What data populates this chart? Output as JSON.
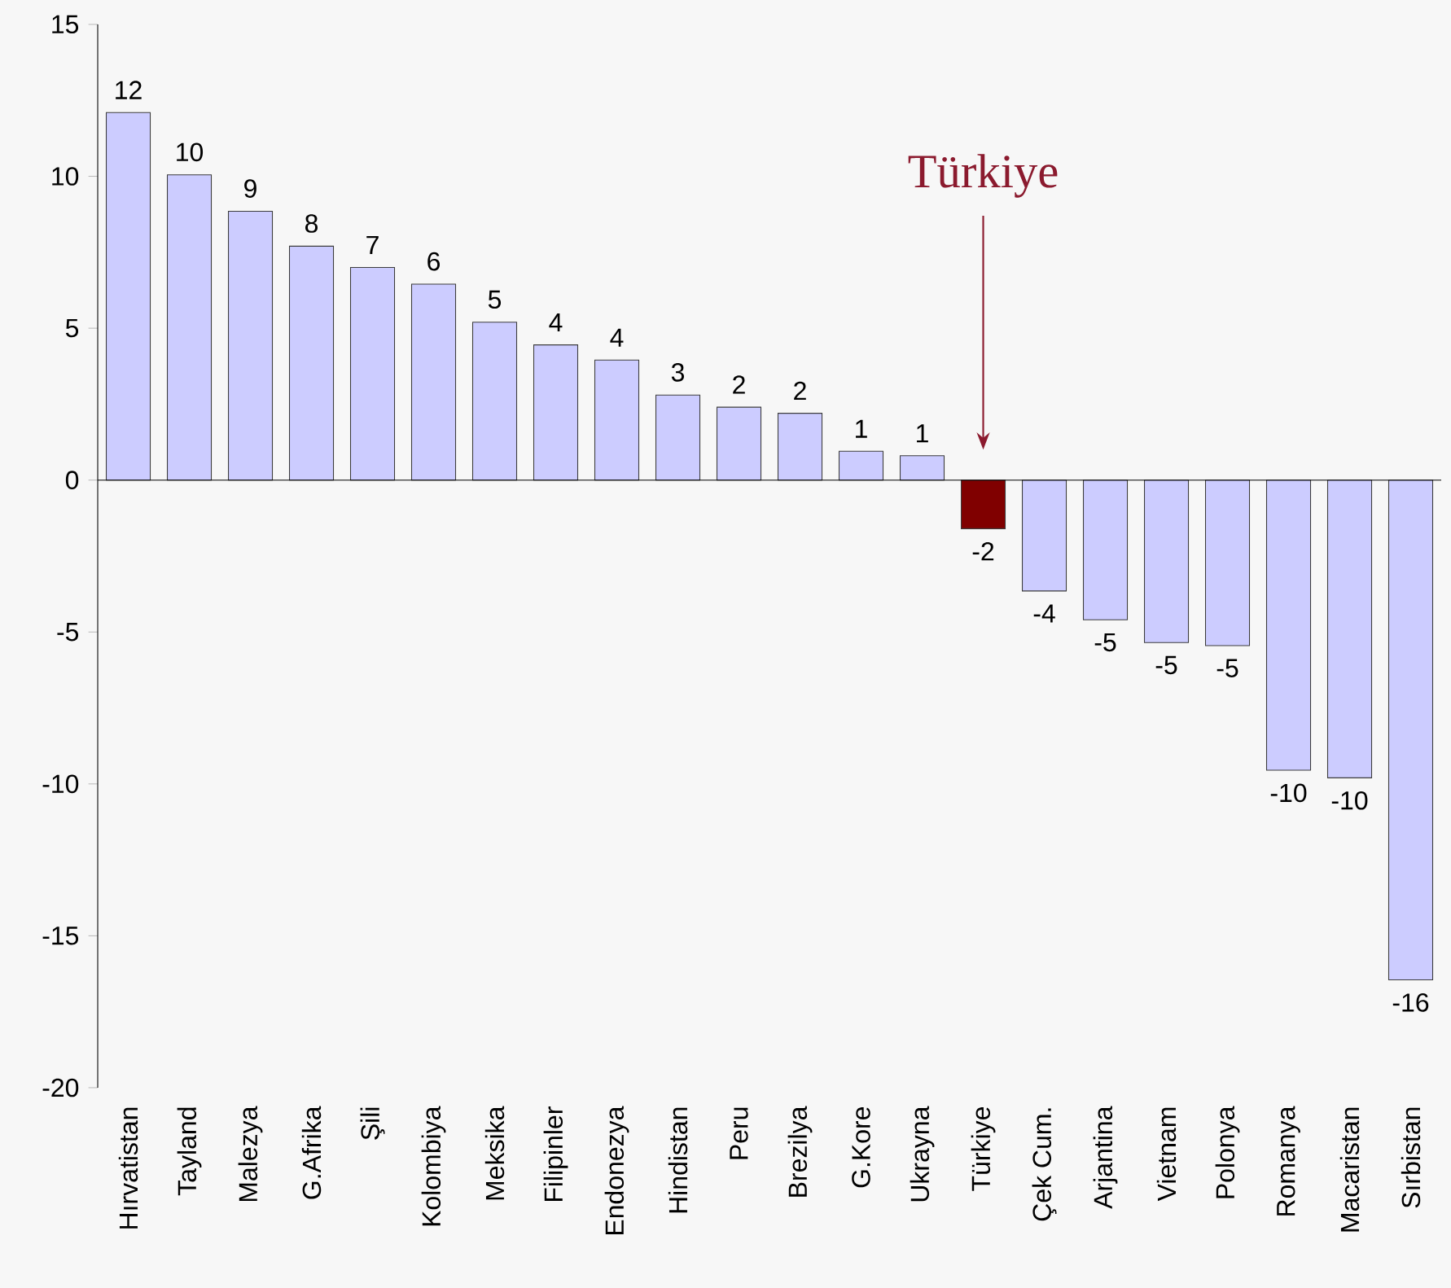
{
  "chart_data": {
    "type": "bar",
    "categories": [
      "Hırvatistan",
      "Tayland",
      "Malezya",
      "G.Afrika",
      "Şili",
      "Kolombiya",
      "Meksika",
      "Filipinler",
      "Endonezya",
      "Hindistan",
      "Peru",
      "Brezilya",
      "G.Kore",
      "Ukrayna",
      "Türkiye",
      "Çek Cum.",
      "Arjantina",
      "Vietnam",
      "Polonya",
      "Romanya",
      "Macaristan",
      "Sırbistan"
    ],
    "values": [
      12.1,
      10.05,
      8.85,
      7.7,
      7.0,
      6.45,
      5.2,
      4.45,
      3.95,
      2.8,
      2.4,
      2.2,
      0.95,
      0.8,
      -1.6,
      -3.65,
      -4.6,
      -5.35,
      -5.45,
      -9.55,
      -9.8,
      -16.45
    ],
    "colors": [
      "#ccccff",
      "#ccccff",
      "#ccccff",
      "#ccccff",
      "#ccccff",
      "#ccccff",
      "#ccccff",
      "#ccccff",
      "#ccccff",
      "#ccccff",
      "#ccccff",
      "#ccccff",
      "#ccccff",
      "#ccccff",
      "#800000",
      "#ccccff",
      "#ccccff",
      "#ccccff",
      "#ccccff",
      "#ccccff",
      "#ccccff",
      "#ccccff"
    ],
    "value_labels": [
      "12",
      "10",
      "9",
      "8",
      "7",
      "6",
      "5",
      "4",
      "4",
      "3",
      "2",
      "2",
      "1",
      "1",
      "-2",
      "-4",
      "-5",
      "-5",
      "-5",
      "-10",
      "-10",
      "-16"
    ],
    "ylim": [
      -20,
      15
    ],
    "yticks": [
      -20,
      -15,
      -10,
      -5,
      0,
      5,
      10,
      15
    ],
    "annotations": [
      "Türkiye"
    ]
  }
}
